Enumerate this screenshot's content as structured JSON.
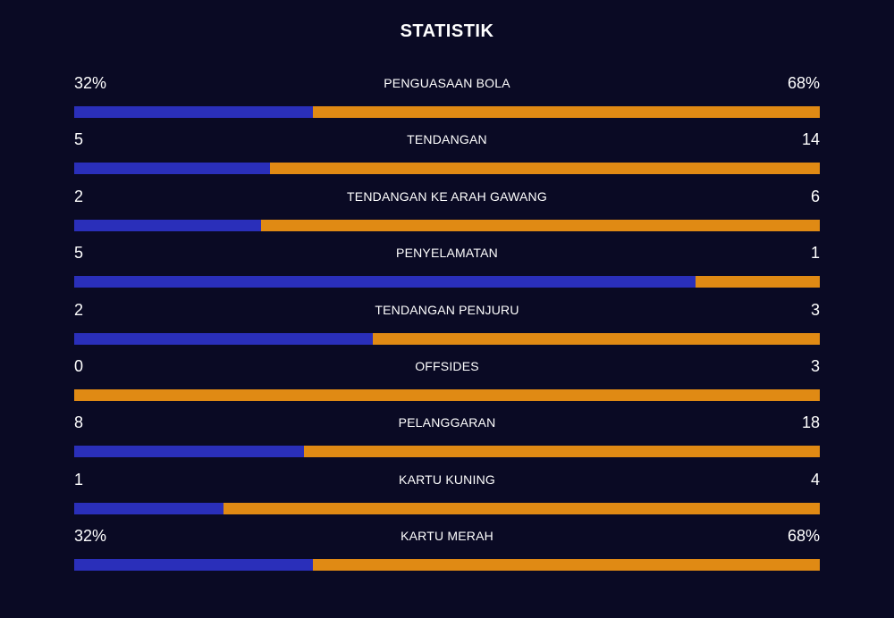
{
  "title": "STATISTIK",
  "colors": {
    "background": "#0a0a24",
    "home": "#2a2fba",
    "away": "#e08a14"
  },
  "stats": [
    {
      "label": "PENGUASAAN BOLA",
      "left": "32%",
      "right": "68%",
      "left_share": 0.32
    },
    {
      "label": "TENDANGAN",
      "left": "5",
      "right": "14",
      "left_share": 0.263
    },
    {
      "label": "TENDANGAN KE ARAH GAWANG",
      "left": "2",
      "right": "6",
      "left_share": 0.25
    },
    {
      "label": "PENYELAMATAN",
      "left": "5",
      "right": "1",
      "left_share": 0.833
    },
    {
      "label": "TENDANGAN PENJURU",
      "left": "2",
      "right": "3",
      "left_share": 0.4
    },
    {
      "label": "OFFSIDES",
      "left": "0",
      "right": "3",
      "left_share": 0
    },
    {
      "label": "PELANGGARAN",
      "left": "8",
      "right": "18",
      "left_share": 0.308
    },
    {
      "label": "KARTU KUNING",
      "left": "1",
      "right": "4",
      "left_share": 0.2
    },
    {
      "label": "KARTU MERAH",
      "left": "32%",
      "right": "68%",
      "left_share": 0.32
    }
  ]
}
